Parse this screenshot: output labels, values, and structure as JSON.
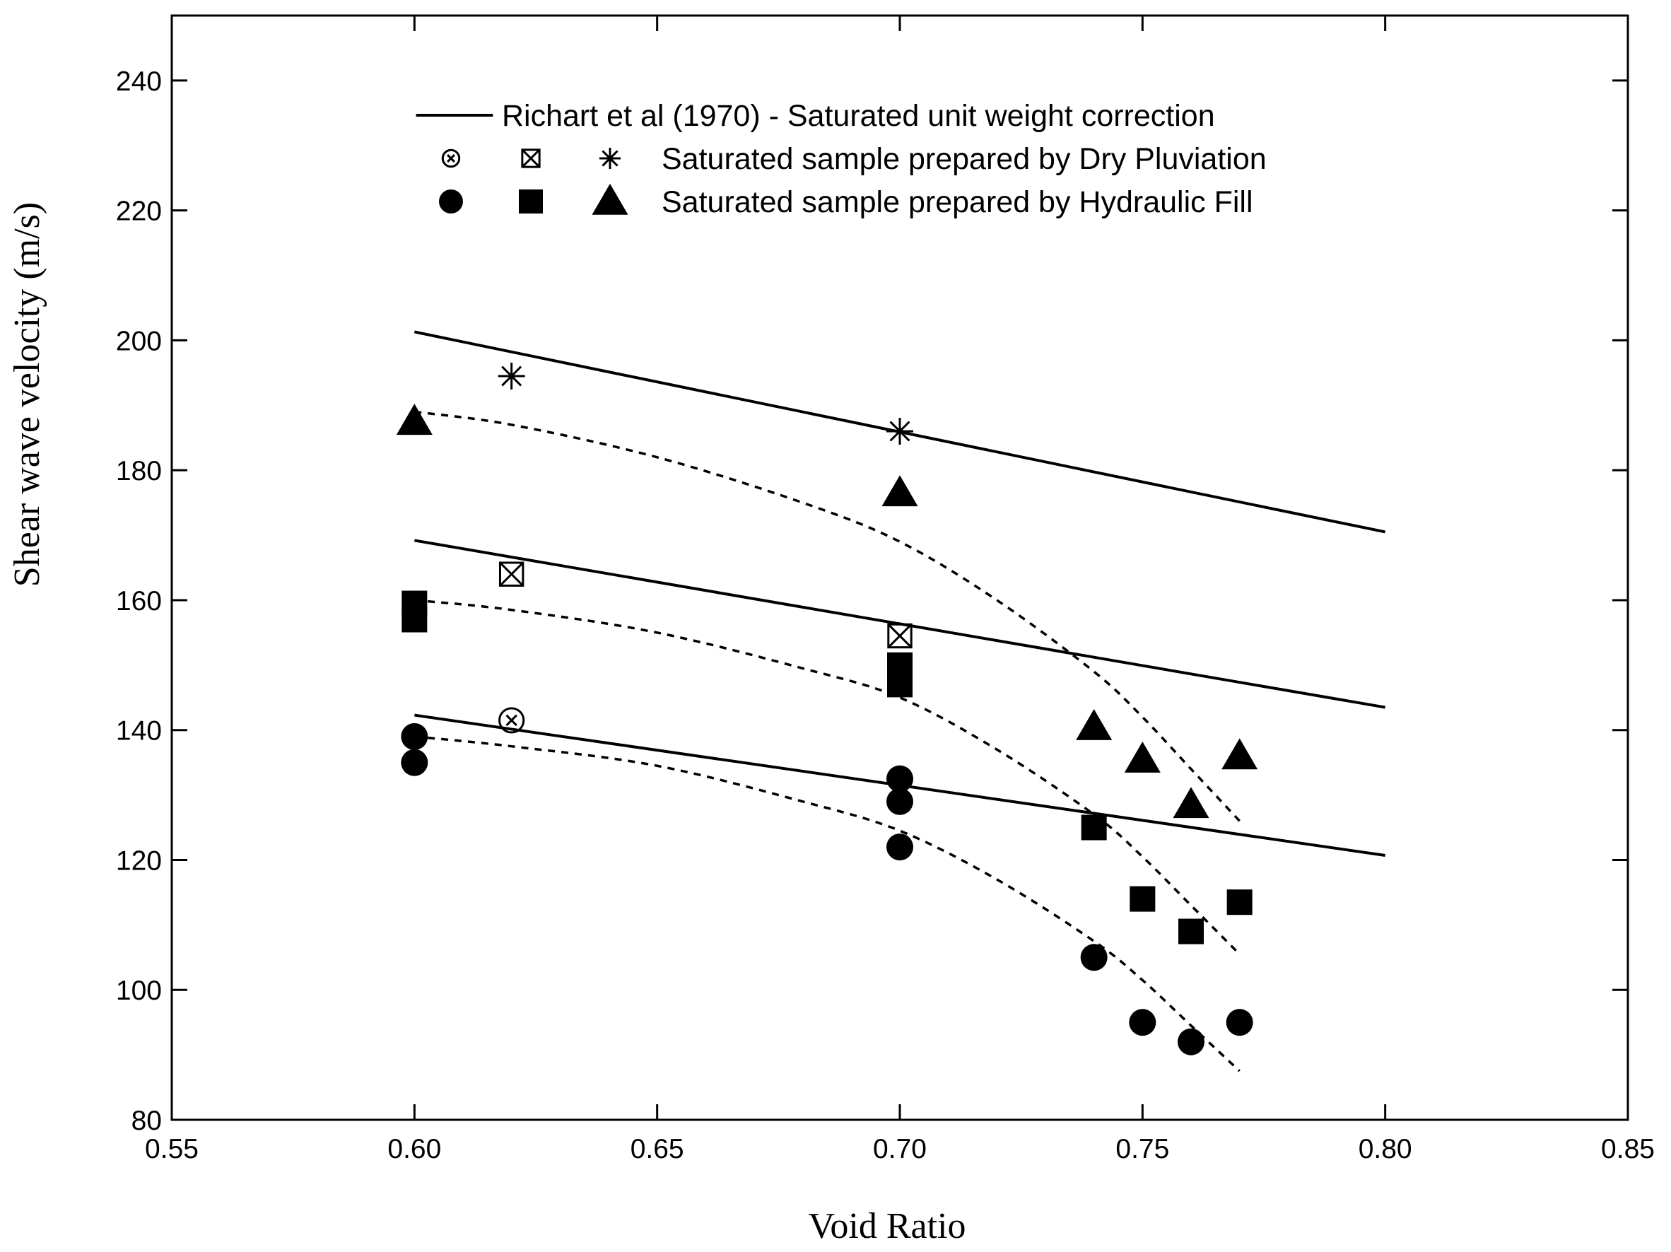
{
  "chart_data": {
    "type": "scatter",
    "title": "",
    "xlabel": "Void Ratio",
    "ylabel": "Shear wave velocity (m/s)",
    "xlim": [
      0.55,
      0.85
    ],
    "ylim": [
      80,
      250
    ],
    "x_ticks": [
      0.55,
      0.6,
      0.65,
      0.7,
      0.75,
      0.8,
      0.85
    ],
    "x_tick_labels": [
      "0.55",
      "0.60",
      "0.65",
      "0.70",
      "0.75",
      "0.80",
      "0.85"
    ],
    "y_ticks": [
      80,
      100,
      120,
      140,
      160,
      180,
      200,
      220,
      240
    ],
    "y_tick_labels": [
      "80",
      "100",
      "120",
      "140",
      "160",
      "180",
      "200",
      "220",
      "240"
    ],
    "grid": false,
    "legend": {
      "placement": "top-center",
      "entries": [
        {
          "symbols": [
            "solid-line"
          ],
          "label": "Richart et al (1970) - Saturated unit weight correction"
        },
        {
          "symbols": [
            "circle-x-open",
            "square-x-open",
            "asterisk"
          ],
          "label": "Saturated sample prepared by Dry Pluviation"
        },
        {
          "symbols": [
            "circle-filled",
            "square-filled",
            "triangle-filled"
          ],
          "label": "Saturated sample prepared by Hydraulic Fill"
        }
      ]
    },
    "richart_lines": [
      {
        "name": "Richart upper",
        "x": [
          0.6,
          0.8
        ],
        "y": [
          201.3,
          170.5
        ]
      },
      {
        "name": "Richart middle",
        "x": [
          0.6,
          0.8
        ],
        "y": [
          169.2,
          143.5
        ]
      },
      {
        "name": "Richart lower",
        "x": [
          0.6,
          0.8
        ],
        "y": [
          142.3,
          120.7
        ]
      }
    ],
    "trend_curves": [
      {
        "name": "Triangle trend (dashed)",
        "x": [
          0.6,
          0.62,
          0.65,
          0.68,
          0.7,
          0.72,
          0.74,
          0.75,
          0.76,
          0.77
        ],
        "y": [
          189.0,
          187.0,
          182.0,
          175.0,
          169.0,
          160.0,
          149.0,
          142.0,
          134.0,
          126.0
        ]
      },
      {
        "name": "Square trend (dashed)",
        "x": [
          0.6,
          0.62,
          0.65,
          0.68,
          0.7,
          0.72,
          0.74,
          0.75,
          0.76,
          0.77
        ],
        "y": [
          160.0,
          158.5,
          155.0,
          149.5,
          145.0,
          137.0,
          127.0,
          120.5,
          113.0,
          105.5
        ]
      },
      {
        "name": "Circle trend (dashed)",
        "x": [
          0.6,
          0.62,
          0.65,
          0.68,
          0.7,
          0.72,
          0.74,
          0.75,
          0.76,
          0.77
        ],
        "y": [
          139.0,
          137.5,
          134.5,
          129.0,
          124.5,
          117.0,
          107.5,
          101.5,
          94.5,
          87.5
        ]
      }
    ],
    "series": [
      {
        "name": "Dry Pluviation - asterisk",
        "marker": "asterisk",
        "x": [
          0.62,
          0.7
        ],
        "y": [
          194.5,
          186.0
        ]
      },
      {
        "name": "Dry Pluviation - square-x",
        "marker": "square-x-open",
        "x": [
          0.62,
          0.7
        ],
        "y": [
          164.0,
          154.5
        ]
      },
      {
        "name": "Dry Pluviation - circle-x",
        "marker": "circle-x-open",
        "x": [
          0.62
        ],
        "y": [
          141.5
        ]
      },
      {
        "name": "Hydraulic Fill - triangle",
        "marker": "triangle-filled",
        "x": [
          0.6,
          0.7,
          0.74,
          0.75,
          0.76,
          0.77
        ],
        "y": [
          187.5,
          176.5,
          140.5,
          135.5,
          128.5,
          136.0
        ]
      },
      {
        "name": "Hydraulic Fill - square",
        "marker": "square-filled",
        "x": [
          0.6,
          0.6,
          0.7,
          0.7,
          0.74,
          0.75,
          0.76,
          0.77
        ],
        "y": [
          159.5,
          157.0,
          150.0,
          147.0,
          125.0,
          114.0,
          109.0,
          113.5
        ]
      },
      {
        "name": "Hydraulic Fill - circle",
        "marker": "circle-filled",
        "x": [
          0.6,
          0.6,
          0.7,
          0.7,
          0.7,
          0.74,
          0.75,
          0.76,
          0.77
        ],
        "y": [
          139.0,
          135.0,
          132.5,
          129.0,
          122.0,
          105.0,
          95.0,
          92.0,
          95.0
        ]
      }
    ]
  }
}
